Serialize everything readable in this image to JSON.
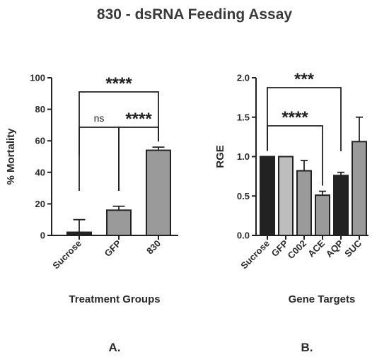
{
  "figure": {
    "title": "830 - dsRNA Feeding Assay"
  },
  "chart_data": [
    {
      "type": "bar",
      "panel_label": "A.",
      "categories": [
        "Sucrose",
        "GFP",
        "830"
      ],
      "values": [
        2,
        16,
        54
      ],
      "errors": [
        8,
        2.5,
        2
      ],
      "colors": [
        "#222222",
        "#9a9a9a",
        "#9a9a9a"
      ],
      "xlabel": "Treatment Groups",
      "ylabel": "% Mortality",
      "ylim": [
        0,
        100
      ],
      "yticks": [
        0,
        20,
        40,
        60,
        80,
        100
      ],
      "ytick_labels": [
        "0",
        "20",
        "40",
        "60",
        "80",
        "100"
      ],
      "grid": false,
      "comparisons": [
        {
          "from": 0,
          "to": 1,
          "label": "ns",
          "level": 0
        },
        {
          "from": 1,
          "to": 2,
          "label": "****",
          "level": 0
        },
        {
          "from": 0,
          "to": 2,
          "label": "****",
          "level": 1
        }
      ]
    },
    {
      "type": "bar",
      "panel_label": "B.",
      "categories": [
        "Sucrose",
        "GFP",
        "C002",
        "ACE",
        "AQP",
        "SUC"
      ],
      "values": [
        1.0,
        1.0,
        0.82,
        0.51,
        0.76,
        1.19
      ],
      "errors": [
        0,
        0,
        0.13,
        0.05,
        0.04,
        0.31
      ],
      "colors": [
        "#222222",
        "#bdbdbd",
        "#9a9a9a",
        "#9a9a9a",
        "#222222",
        "#9a9a9a"
      ],
      "xlabel": "Gene Targets",
      "ylabel": "RGE",
      "ylim": [
        0,
        2.0
      ],
      "yticks": [
        0,
        0.5,
        1.0,
        1.5,
        2.0
      ],
      "ytick_labels": [
        "0.0",
        "0.5",
        "1.0",
        "1.5",
        "2.0"
      ],
      "grid": false,
      "comparisons": [
        {
          "from": 0,
          "to": 3,
          "label": "****",
          "level": 0
        },
        {
          "from": 0,
          "to": 4,
          "label": "***",
          "level": 1
        }
      ]
    }
  ]
}
